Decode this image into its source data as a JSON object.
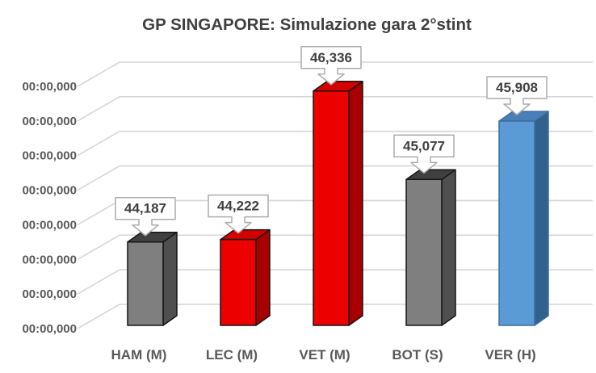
{
  "chart_data": {
    "type": "bar",
    "effect": "3d",
    "title": "GP SINGAPORE: Simulazione gara 2°stint",
    "categories": [
      "HAM (M)",
      "LEC (M)",
      "VET (M)",
      "BOT (S)",
      "VER (H)"
    ],
    "values_seconds": [
      44.187,
      44.222,
      46.336,
      45.077,
      45.908
    ],
    "data_labels": [
      "44,187",
      "44,222",
      "46,336",
      "45,077",
      "45,908"
    ],
    "y_axis": {
      "tick_label_text": "00:00,000",
      "tick_count": 8,
      "range_estimate_seconds": [
        43.0,
        46.5
      ],
      "step_estimate_seconds": 0.5
    },
    "grid": true,
    "legend": null,
    "bar_colors": [
      {
        "front": "#7F7F7F",
        "top": "#404040",
        "side": "#4F4F4F",
        "outline": "#151515"
      },
      {
        "front": "#EC0000",
        "top": "#D40000",
        "side": "#A80000",
        "outline": "#151515"
      },
      {
        "front": "#EC0000",
        "top": "#D40000",
        "side": "#A80000",
        "outline": "#151515"
      },
      {
        "front": "#7F7F7F",
        "top": "#404040",
        "side": "#4F4F4F",
        "outline": "#151515"
      },
      {
        "front": "#5B9BD5",
        "top": "#4A7EB8",
        "side": "#31618D",
        "outline": "#3D6E9E"
      }
    ]
  },
  "styles": {
    "background": "#FFFFFF",
    "title_color": "#404040",
    "axis_text_color": "#595959",
    "gridline_color": "#D6D6D6",
    "callout_fill": "#FFFFFF",
    "callout_border": "#ACACAC",
    "callout_text_color": "#404040"
  }
}
